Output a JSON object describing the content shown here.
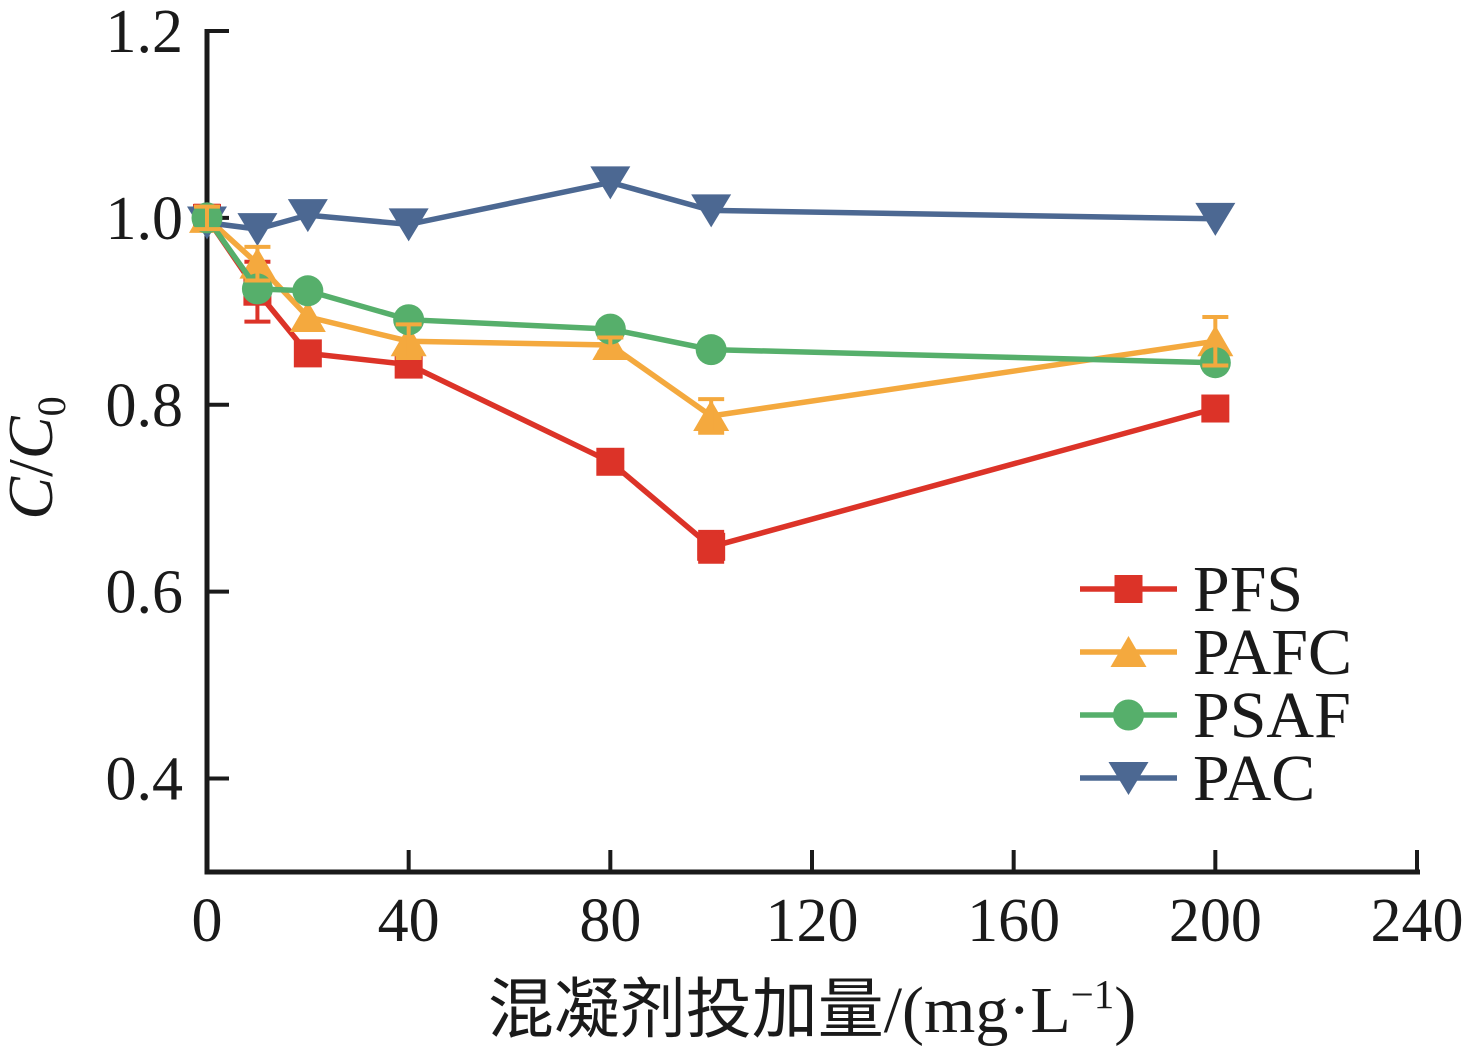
{
  "chart_data": {
    "type": "line",
    "title": "",
    "xlabel": "混凝剂投加量/(mg·L−1)",
    "ylabel": "C/C0",
    "xlabel_parts": [
      {
        "t": "混凝剂投加量/(mg·L"
      },
      {
        "t": "−1",
        "script": "sup"
      },
      {
        "t": ")"
      }
    ],
    "ylabel_parts": [
      {
        "t": "C",
        "italic": true
      },
      {
        "t": "/"
      },
      {
        "t": "C",
        "italic": true
      },
      {
        "t": "0",
        "script": "sub"
      }
    ],
    "x": [
      0,
      10,
      20,
      40,
      80,
      100,
      200
    ],
    "xlim": [
      0,
      240
    ],
    "ylim": [
      0.3,
      1.2
    ],
    "xticks": [
      0,
      40,
      80,
      120,
      160,
      200,
      240
    ],
    "yticks": [
      0.4,
      0.6,
      0.8,
      1.0,
      1.2
    ],
    "grid": false,
    "axis_color": "#1a1a1a",
    "legend_position": "lower right",
    "series": [
      {
        "name": "PFS",
        "marker": "square",
        "color": "#DC3328",
        "values": [
          1.0,
          0.921,
          0.855,
          0.843,
          0.739,
          0.648,
          0.796
        ],
        "errors": [
          0.013,
          0.032,
          0,
          0,
          0,
          0.016,
          0
        ]
      },
      {
        "name": "PAFC",
        "marker": "triangle-up",
        "color": "#F4A93E",
        "values": [
          1.0,
          0.951,
          0.894,
          0.868,
          0.864,
          0.788,
          0.868
        ],
        "errors": [
          0.012,
          0.018,
          0,
          0.018,
          0.008,
          0.018,
          0.026
        ]
      },
      {
        "name": "PSAF",
        "marker": "circle",
        "color": "#56AF6B",
        "values": [
          1.0,
          0.924,
          0.922,
          0.891,
          0.881,
          0.859,
          0.845
        ],
        "errors": [
          0,
          0,
          0,
          0,
          0,
          0,
          0
        ]
      },
      {
        "name": "PAC",
        "marker": "triangle-down",
        "color": "#4C6892",
        "values": [
          0.995,
          0.988,
          1.003,
          0.993,
          1.038,
          1.008,
          0.999
        ],
        "errors": [
          0,
          0,
          0,
          0,
          0,
          0,
          0
        ]
      }
    ],
    "legend_entries": [
      "PFS",
      "PAFC",
      "PSAF",
      "PAC"
    ]
  }
}
